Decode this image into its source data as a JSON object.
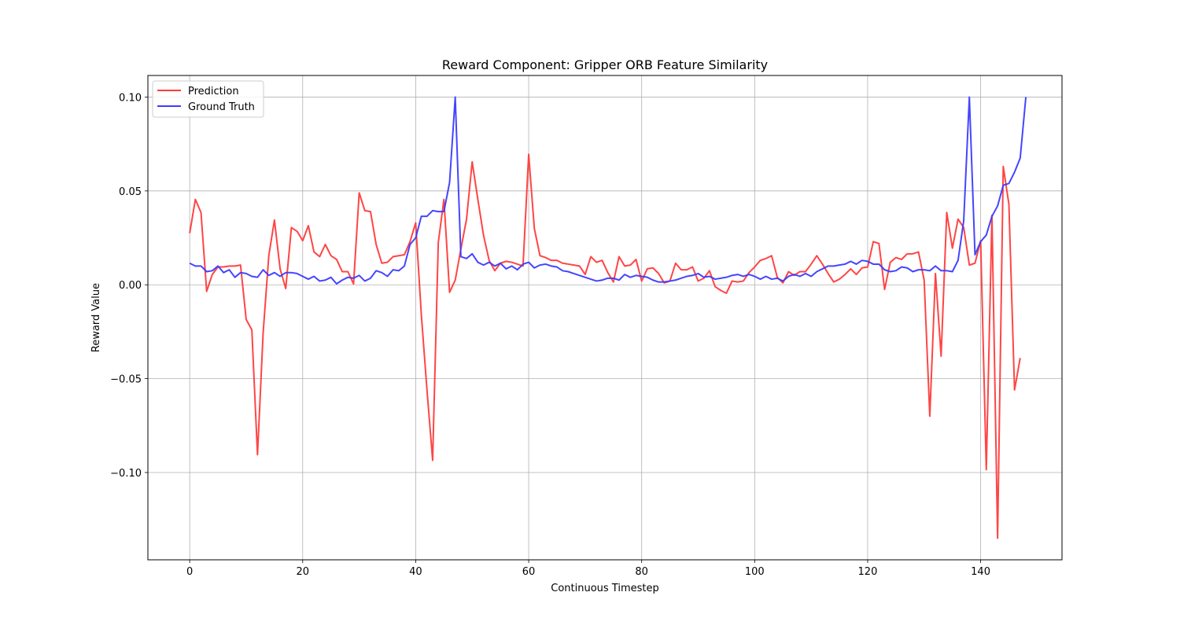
{
  "chart_data": {
    "type": "line",
    "title": "Reward Component: Gripper ORB Feature Similarity",
    "xlabel": "Continuous Timestep",
    "ylabel": "Reward Value",
    "xlim": [
      -7.4,
      154.4
    ],
    "ylim": [
      -0.1465,
      0.1115
    ],
    "x_ticks": [
      0,
      20,
      40,
      60,
      80,
      100,
      120,
      140
    ],
    "x_tick_labels": [
      "0",
      "20",
      "40",
      "60",
      "80",
      "100",
      "120",
      "140"
    ],
    "y_ticks": [
      -0.1,
      -0.05,
      0.0,
      0.05,
      0.1
    ],
    "y_tick_labels": [
      "−0.10",
      "−0.05",
      "0.00",
      "0.05",
      "0.10"
    ],
    "grid": true,
    "legend_position": "upper-left",
    "series": [
      {
        "name": "Prediction",
        "color": "#ff3b3b",
        "values": [
          0.0275,
          0.0455,
          0.0385,
          -0.0035,
          0.0055,
          0.0095,
          0.0095,
          0.01,
          0.01,
          0.0105,
          -0.0185,
          -0.024,
          -0.0905,
          -0.0255,
          0.0155,
          0.0345,
          0.0085,
          -0.002,
          0.0305,
          0.0285,
          0.0235,
          0.0315,
          0.0175,
          0.015,
          0.0215,
          0.0155,
          0.0135,
          0.007,
          0.007,
          0.0005,
          0.049,
          0.0395,
          0.039,
          0.0215,
          0.0115,
          0.012,
          0.015,
          0.0155,
          0.016,
          0.023,
          0.033,
          -0.016,
          -0.056,
          -0.0935,
          0.0225,
          0.0455,
          -0.004,
          0.0025,
          0.019,
          0.035,
          0.0655,
          0.0455,
          0.0265,
          0.013,
          0.0075,
          0.0115,
          0.0125,
          0.012,
          0.011,
          0.01,
          0.0695,
          0.03,
          0.0155,
          0.0145,
          0.013,
          0.013,
          0.0115,
          0.011,
          0.0105,
          0.01,
          0.0055,
          0.015,
          0.012,
          0.013,
          0.0065,
          0.0015,
          0.015,
          0.01,
          0.0105,
          0.0135,
          0.002,
          0.0085,
          0.009,
          0.006,
          0.001,
          0.002,
          0.0115,
          0.008,
          0.008,
          0.0095,
          0.002,
          0.0035,
          0.0075,
          -0.001,
          -0.003,
          -0.0045,
          0.002,
          0.0015,
          0.002,
          0.0065,
          0.0095,
          0.013,
          0.014,
          0.0155,
          0.004,
          0.001,
          0.007,
          0.005,
          0.007,
          0.007,
          0.011,
          0.0155,
          0.011,
          0.006,
          0.0015,
          0.003,
          0.0055,
          0.0085,
          0.0055,
          0.009,
          0.0095,
          0.023,
          0.022,
          -0.0025,
          0.012,
          0.0145,
          0.0135,
          0.0165,
          0.0165,
          0.0175,
          0.0025,
          -0.07,
          0.006,
          -0.038,
          0.0385,
          0.0195,
          0.035,
          0.0305,
          0.0105,
          0.0115,
          0.0235,
          -0.0985,
          0.037,
          -0.135,
          0.063,
          0.043,
          -0.056,
          -0.039
        ]
      },
      {
        "name": "Ground Truth",
        "color": "#3b3bff",
        "values": [
          0.0115,
          0.01,
          0.01,
          0.007,
          0.0075,
          0.01,
          0.0065,
          0.008,
          0.004,
          0.0065,
          0.006,
          0.0045,
          0.004,
          0.008,
          0.005,
          0.0065,
          0.0045,
          0.0065,
          0.0065,
          0.006,
          0.0045,
          0.003,
          0.0045,
          0.002,
          0.0025,
          0.004,
          0.0005,
          0.0025,
          0.004,
          0.0035,
          0.005,
          0.002,
          0.0035,
          0.0075,
          0.0065,
          0.0045,
          0.008,
          0.0075,
          0.01,
          0.0215,
          0.025,
          0.0365,
          0.0365,
          0.0395,
          0.039,
          0.039,
          0.0545,
          0.1,
          0.015,
          0.014,
          0.0165,
          0.012,
          0.0105,
          0.012,
          0.01,
          0.0115,
          0.0085,
          0.01,
          0.008,
          0.011,
          0.012,
          0.009,
          0.0105,
          0.011,
          0.01,
          0.0095,
          0.0075,
          0.007,
          0.006,
          0.005,
          0.004,
          0.003,
          0.002,
          0.0025,
          0.0035,
          0.0035,
          0.0025,
          0.0055,
          0.004,
          0.005,
          0.0045,
          0.004,
          0.0025,
          0.0015,
          0.0015,
          0.002,
          0.0025,
          0.0035,
          0.0045,
          0.005,
          0.006,
          0.004,
          0.0045,
          0.003,
          0.0035,
          0.004,
          0.005,
          0.0055,
          0.0045,
          0.0055,
          0.0045,
          0.003,
          0.0045,
          0.003,
          0.0035,
          0.002,
          0.0045,
          0.0055,
          0.0045,
          0.006,
          0.0045,
          0.007,
          0.0085,
          0.01,
          0.01,
          0.0105,
          0.011,
          0.0125,
          0.011,
          0.013,
          0.0125,
          0.011,
          0.011,
          0.008,
          0.007,
          0.0075,
          0.0095,
          0.009,
          0.007,
          0.008,
          0.008,
          0.0075,
          0.01,
          0.0075,
          0.0075,
          0.007,
          0.013,
          0.034,
          0.1,
          0.016,
          0.023,
          0.0265,
          0.0365,
          0.042,
          0.053,
          0.054,
          0.06,
          0.0675,
          0.1
        ]
      }
    ]
  }
}
